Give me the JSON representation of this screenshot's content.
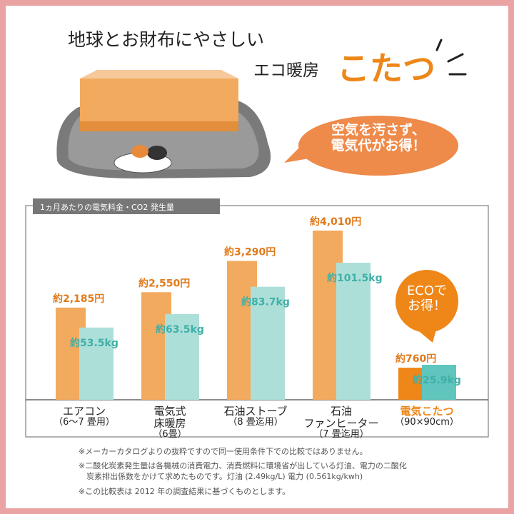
{
  "header": {
    "line1": "地球とお財布にやさしい",
    "line2": "エコ暖房",
    "highlight": "こたつ"
  },
  "bubble": "空気を汚さず、\n電気代がお得！",
  "badge": "ECOで\nお得！",
  "chart_data": {
    "type": "bar",
    "title": "1ヵ月あたりの電気料金・CO2 発生量",
    "categories": [
      "エアコン",
      "電気式\n床暖房",
      "石油ストーブ",
      "石油\nファンヒーター",
      "電気こたつ"
    ],
    "category_sizes": [
      "（6～7 畳用）",
      "（6畳）",
      "（8 畳迄用）",
      "（7 畳迄用）",
      "（90×90cm）"
    ],
    "series": [
      {
        "values": [
          2185,
          2550,
          3290,
          4010,
          760
        ],
        "value_labels": [
          "約2,185円",
          "約2,550円",
          "約3,290円",
          "約4,010円",
          "約760円"
        ],
        "color": "#f2aa5e",
        "colors": [
          "#f2aa5e",
          "#f2aa5e",
          "#f2aa5e",
          "#f2aa5e",
          "#ee8618"
        ]
      },
      {
        "values": [
          53.5,
          63.5,
          83.7,
          101.5,
          25.9
        ],
        "value_labels": [
          "約53.5kg",
          "約63.5kg",
          "約83.7kg",
          "約101.5kg",
          "約25.9kg"
        ],
        "color": "#addfd9",
        "colors": [
          "#addfd9",
          "#addfd9",
          "#addfd9",
          "#addfd9",
          "#5fc5bd"
        ]
      }
    ]
  },
  "footnotes": [
    "※メーカーカタログよりの抜粋ですので同一使用条件下での比較ではありません。",
    "※二酸化炭素発生量は各機械の消費電力、消費燃料に環境省が出している灯油、電力の二酸化\n　炭素排出係数をかけて求めたものです。灯油 (2.49kg/L) 電力 (0.561kg/kwh)",
    "※この比較表は 2012 年の調査結果に基づくものとします。"
  ]
}
